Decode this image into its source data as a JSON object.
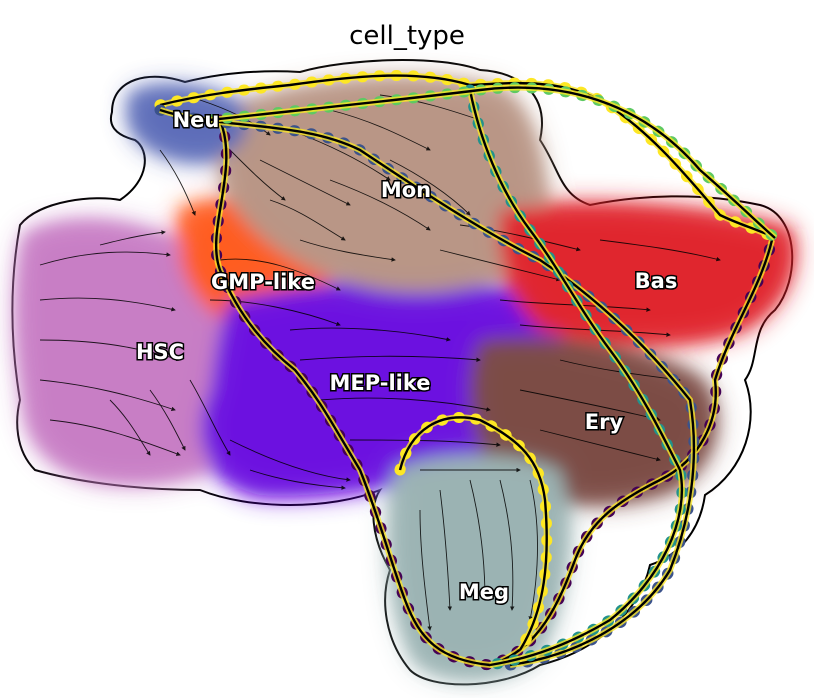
{
  "title": "cell_type",
  "clusters": [
    {
      "id": "hsc",
      "label": "HSC",
      "color": "#c77cc4"
    },
    {
      "id": "gmp",
      "label": "GMP-like",
      "color": "#ff5a1a"
    },
    {
      "id": "mep",
      "label": "MEP-like",
      "color": "#6a10e0"
    },
    {
      "id": "mon",
      "label": "Mon",
      "color": "#b89484"
    },
    {
      "id": "neu",
      "label": "Neu",
      "color": "#5a6ab8"
    },
    {
      "id": "bas",
      "label": "Bas",
      "color": "#e0242a"
    },
    {
      "id": "ery",
      "label": "Ery",
      "color": "#7a4a42"
    },
    {
      "id": "meg",
      "label": "Meg",
      "color": "#9ab2b2"
    }
  ],
  "boundary_colors": [
    "#440154",
    "#3b528b",
    "#21918c",
    "#5ec962",
    "#fde725"
  ],
  "streamline_color": "#000000"
}
